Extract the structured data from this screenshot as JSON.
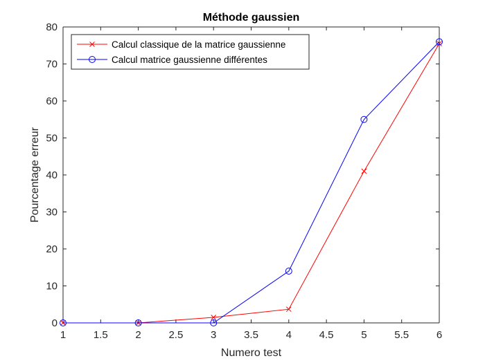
{
  "chart_data": {
    "type": "line",
    "title": "Méthode gaussien",
    "xlabel": "Numero test",
    "ylabel": "Pourcentage erreur",
    "xlim": [
      1,
      6
    ],
    "ylim": [
      0,
      80
    ],
    "xticks": [
      1,
      1.5,
      2,
      2.5,
      3,
      3.5,
      4,
      4.5,
      5,
      5.5,
      6
    ],
    "xtick_labels": [
      "1",
      "1.5",
      "2",
      "2.5",
      "3",
      "3.5",
      "4",
      "4.5",
      "5",
      "5.5",
      "6"
    ],
    "yticks": [
      0,
      10,
      20,
      30,
      40,
      50,
      60,
      70,
      80
    ],
    "ytick_labels": [
      "0",
      "10",
      "20",
      "30",
      "40",
      "50",
      "60",
      "70",
      "80"
    ],
    "grid": false,
    "legend_position": "top-left",
    "x": [
      1,
      2,
      3,
      4,
      5,
      6
    ],
    "series": [
      {
        "name": "Calcul classique de la matrice gaussienne",
        "values": [
          0,
          0,
          1.5,
          3.7,
          41,
          75.5
        ],
        "color": "#ff0000",
        "marker": "x"
      },
      {
        "name": "Calcul matrice gaussienne différentes",
        "values": [
          0,
          0,
          0,
          14,
          55,
          76
        ],
        "color": "#0000ff",
        "marker": "o"
      }
    ]
  }
}
